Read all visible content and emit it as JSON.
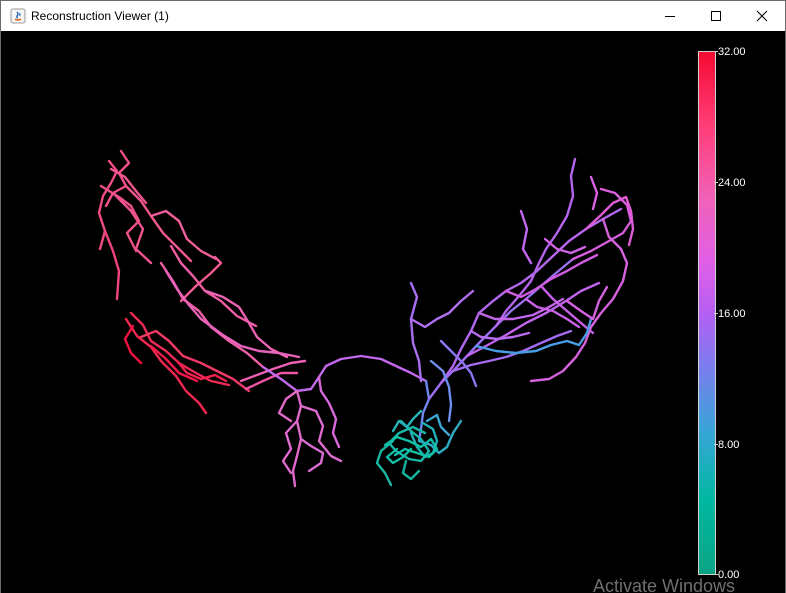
{
  "window": {
    "title": "Reconstruction Viewer (1)",
    "app_icon": "java-icon",
    "controls": {
      "minimize_icon": "minimize-icon",
      "maximize_icon": "maximize-icon",
      "close_icon": "close-icon"
    }
  },
  "colorbar": {
    "ticks": [
      "32.00",
      "24.00",
      "16.00",
      "8.00",
      "0.00"
    ],
    "min": 0,
    "max": 32,
    "colors": {
      "low": "#0aa484",
      "mid_low": "#36a6d6",
      "mid": "#b55ff3",
      "mid_high": "#f061b7",
      "high": "#f50a32"
    }
  },
  "watermark": "Activate Windows"
}
